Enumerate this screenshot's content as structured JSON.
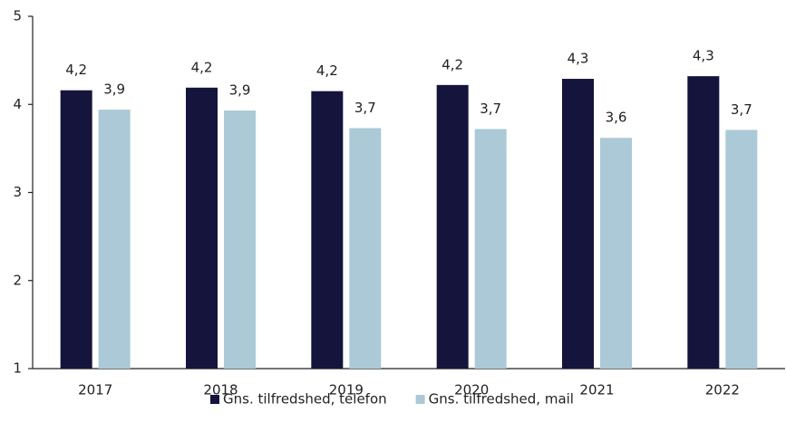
{
  "chart_data": {
    "type": "bar",
    "categories": [
      "2017",
      "2018",
      "2019",
      "2020",
      "2021",
      "2022"
    ],
    "series": [
      {
        "name": "Gns. tilfredshed, telefon",
        "color": "#14143c",
        "values": [
          4.16,
          4.19,
          4.15,
          4.22,
          4.29,
          4.32
        ],
        "value_labels": [
          "4,2",
          "4,2",
          "4,2",
          "4,2",
          "4,3",
          "4,3"
        ]
      },
      {
        "name": "Gns. tilfredshed, mail",
        "color": "#abc9d6",
        "values": [
          3.94,
          3.93,
          3.73,
          3.72,
          3.62,
          3.71
        ],
        "value_labels": [
          "3,9",
          "3,9",
          "3,7",
          "3,7",
          "3,6",
          "3,7"
        ]
      }
    ],
    "ylim": [
      1,
      5
    ],
    "yticks": [
      1,
      2,
      3,
      4,
      5
    ],
    "grid": false,
    "legend": "bottom"
  }
}
